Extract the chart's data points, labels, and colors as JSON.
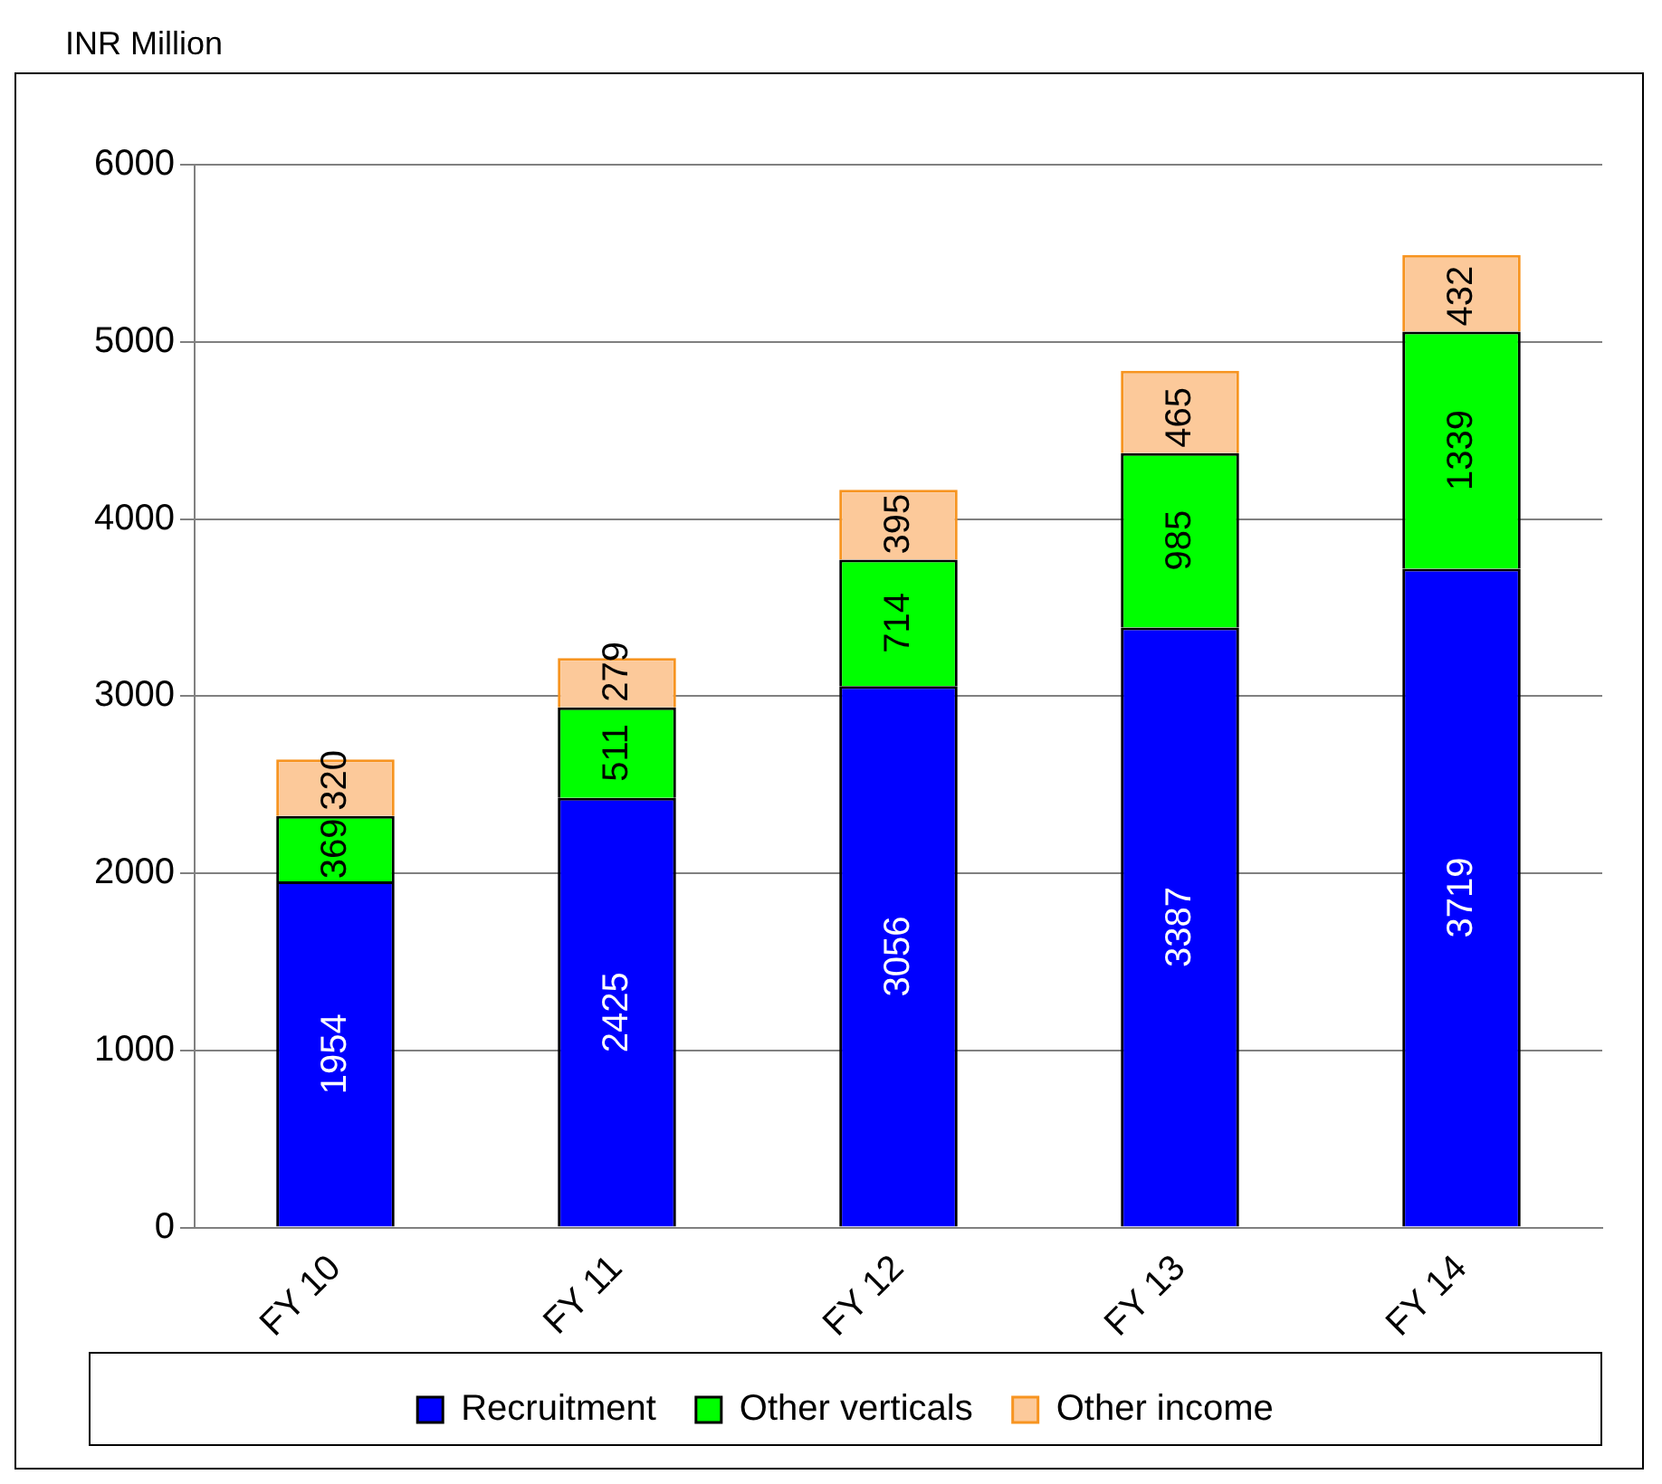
{
  "chart_data": {
    "type": "bar",
    "ylabel": "INR Million",
    "stacked": true,
    "categories": [
      "FY 10",
      "FY 11",
      "FY 12",
      "FY 13",
      "FY 14"
    ],
    "series": [
      {
        "name": "Recruitment",
        "color": "#0000ff",
        "values": [
          1954,
          2425,
          3056,
          3387,
          3719
        ]
      },
      {
        "name": "Other verticals",
        "color": "#00ff00",
        "values": [
          369,
          511,
          714,
          985,
          1339
        ]
      },
      {
        "name": "Other income",
        "color": "#fcc99a",
        "values": [
          320,
          279,
          395,
          465,
          432
        ]
      }
    ],
    "ylim": [
      0,
      6000
    ],
    "yticks": [
      0,
      1000,
      2000,
      3000,
      4000,
      5000,
      6000
    ],
    "grid": "y",
    "legend": "bottom",
    "data_labels": true
  }
}
